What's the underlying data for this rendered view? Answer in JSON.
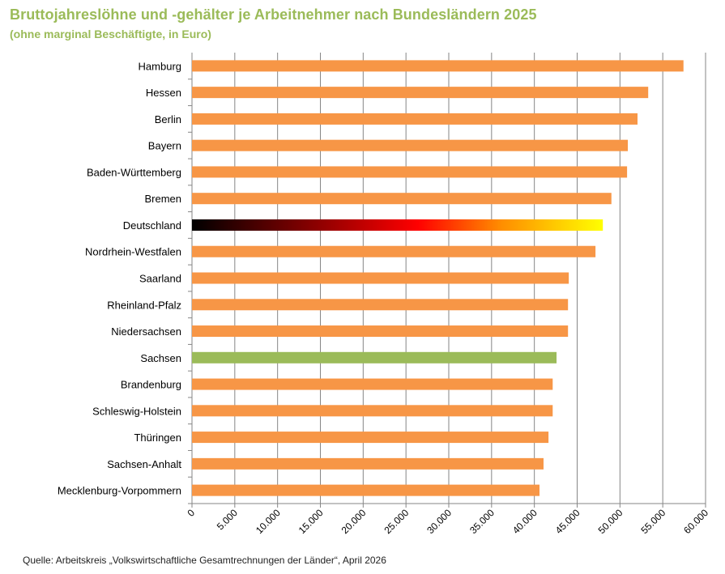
{
  "chart_data": {
    "type": "bar",
    "orientation": "horizontal",
    "title": "Bruttojahreslöhne und -gehälter je Arbeitnehmer nach Bundesländern 2025",
    "subtitle": "(ohne marginal Beschäftigte, in Euro)",
    "categories": [
      "Hamburg",
      "Hessen",
      "Berlin",
      "Bayern",
      "Baden-Württemberg",
      "Bremen",
      "Deutschland",
      "Nordrhein-Westfalen",
      "Saarland",
      "Rheinland-Pfalz",
      "Niedersachsen",
      "Sachsen",
      "Brandenburg",
      "Schleswig-Holstein",
      "Thüringen",
      "Sachsen-Anhalt",
      "Mecklenburg-Vorpommern"
    ],
    "values": [
      57420,
      53300,
      52050,
      50920,
      50830,
      49000,
      48000,
      47140,
      44020,
      43930,
      43930,
      42590,
      42140,
      42140,
      41650,
      41070,
      40600
    ],
    "xlim": [
      0,
      60000
    ],
    "xticks": [
      0,
      5000,
      10000,
      15000,
      20000,
      25000,
      30000,
      35000,
      40000,
      45000,
      50000,
      55000,
      60000
    ],
    "xtick_labels": [
      "0",
      "5.000",
      "10.000",
      "15.000",
      "20.000",
      "25.000",
      "30.000",
      "35.000",
      "40.000",
      "45.000",
      "50.000",
      "55.000",
      "60.000"
    ],
    "grid": "vertical",
    "colors": {
      "default": "#f79646",
      "highlight": "#9bbb59",
      "national_gradient": [
        "#000000",
        "#8b0000",
        "#ff0000",
        "#ff8c00",
        "#ffff00"
      ]
    },
    "highlight_category": "Sachsen",
    "national_category": "Deutschland"
  },
  "source": "Quelle: Arbeitskreis „Volkswirtschaftliche Gesamtrechnungen der Länder“, April 2026"
}
